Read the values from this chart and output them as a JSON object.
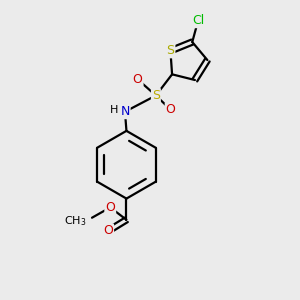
{
  "background_color": "#ebebeb",
  "bond_color": "#000000",
  "bond_width": 1.6,
  "atom_colors": {
    "C": "#000000",
    "H": "#000000",
    "N": "#0000cc",
    "O": "#cc0000",
    "S_sulfonyl": "#bbaa00",
    "S_thienyl": "#aaaa00",
    "Cl": "#00bb00"
  },
  "font_size": 9,
  "fig_size": [
    3.0,
    3.0
  ],
  "dpi": 100
}
